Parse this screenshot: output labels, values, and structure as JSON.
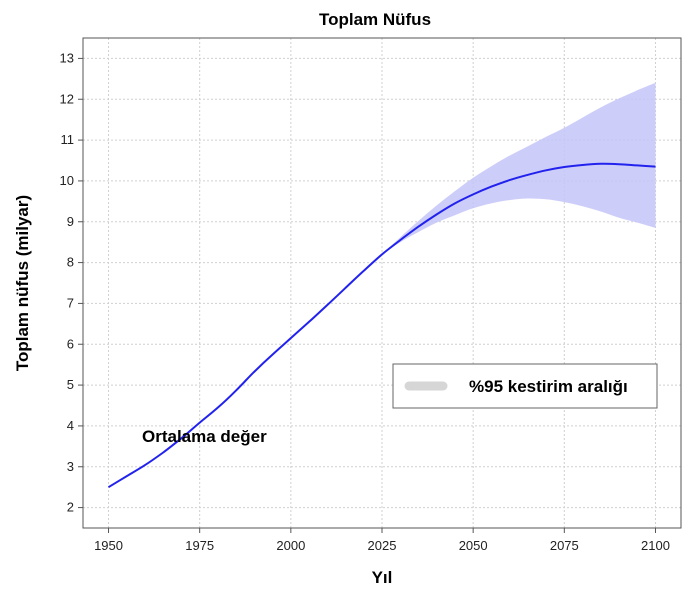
{
  "chart_data": {
    "type": "line",
    "title": "Toplam Nüfus",
    "xlabel": "Yıl",
    "ylabel": "Toplam nüfus (milyar)",
    "xlim": [
      1943,
      2107
    ],
    "ylim": [
      1.5,
      13.5
    ],
    "xticks": [
      1950,
      1975,
      2000,
      2025,
      2050,
      2075,
      2100
    ],
    "yticks": [
      2,
      3,
      4,
      5,
      6,
      7,
      8,
      9,
      10,
      11,
      12,
      13
    ],
    "grid": true,
    "legend": {
      "placement": "right",
      "entries": [
        "%95 kestirim aralığı"
      ]
    },
    "annotations": [
      {
        "text": "Ortalama değer"
      }
    ],
    "colors": {
      "line": "#2222ee",
      "band": "#c4c4f8",
      "legend_swatch": "#d6d6d6"
    },
    "series": [
      {
        "kind": "line",
        "x": [
          1950,
          1955,
          1960,
          1965,
          1970,
          1975,
          1980,
          1985,
          1990,
          1995,
          2000,
          2005,
          2010,
          2015,
          2020,
          2025,
          2030,
          2035,
          2040,
          2045,
          2050,
          2055,
          2060,
          2065,
          2070,
          2075,
          2080,
          2085,
          2090,
          2095,
          2100
        ],
        "y": [
          2.5,
          2.77,
          3.04,
          3.35,
          3.7,
          4.08,
          4.45,
          4.87,
          5.33,
          5.75,
          6.15,
          6.55,
          6.96,
          7.38,
          7.8,
          8.2,
          8.55,
          8.88,
          9.18,
          9.45,
          9.67,
          9.86,
          10.02,
          10.15,
          10.26,
          10.34,
          10.39,
          10.42,
          10.41,
          10.38,
          10.35
        ]
      },
      {
        "kind": "band",
        "x": [
          2025,
          2030,
          2035,
          2040,
          2045,
          2050,
          2055,
          2060,
          2065,
          2070,
          2075,
          2080,
          2085,
          2090,
          2095,
          2100
        ],
        "lower": [
          8.2,
          8.5,
          8.75,
          8.98,
          9.16,
          9.33,
          9.45,
          9.53,
          9.57,
          9.55,
          9.48,
          9.38,
          9.25,
          9.1,
          8.98,
          8.85
        ],
        "upper": [
          8.2,
          8.62,
          9.02,
          9.4,
          9.75,
          10.08,
          10.36,
          10.62,
          10.85,
          11.08,
          11.3,
          11.55,
          11.8,
          12.02,
          12.22,
          12.4
        ]
      }
    ]
  }
}
